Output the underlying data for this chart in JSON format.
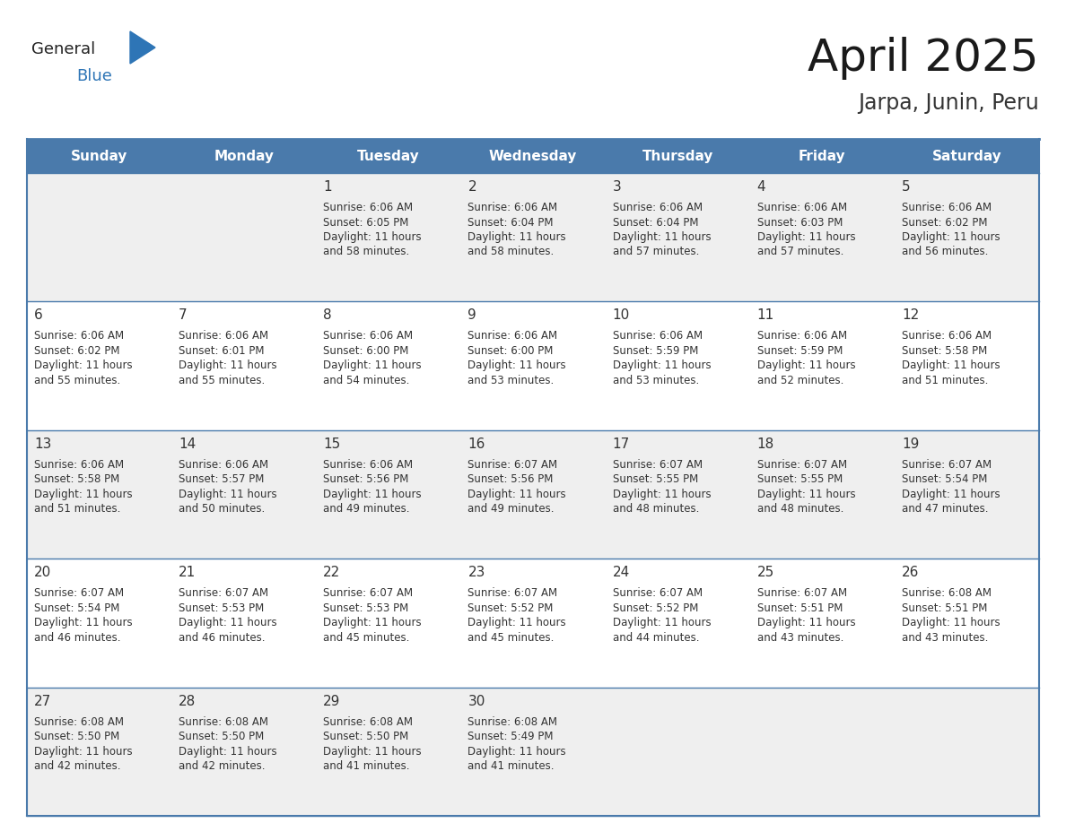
{
  "title": "April 2025",
  "subtitle": "Jarpa, Junin, Peru",
  "days_of_week": [
    "Sunday",
    "Monday",
    "Tuesday",
    "Wednesday",
    "Thursday",
    "Friday",
    "Saturday"
  ],
  "header_bg": "#4a7aab",
  "header_text_color": "#ffffff",
  "cell_bg_light": "#efefef",
  "cell_bg_white": "#ffffff",
  "text_color": "#333333",
  "border_color": "#4a7aab",
  "logo_text_color": "#222222",
  "logo_blue_color": "#2e75b6",
  "title_color": "#1a1a1a",
  "calendar_data": [
    [
      null,
      null,
      {
        "day": 1,
        "sunrise": "6:06 AM",
        "sunset": "6:05 PM",
        "daylight": "11 hours",
        "daylight2": "and 58 minutes."
      },
      {
        "day": 2,
        "sunrise": "6:06 AM",
        "sunset": "6:04 PM",
        "daylight": "11 hours",
        "daylight2": "and 58 minutes."
      },
      {
        "day": 3,
        "sunrise": "6:06 AM",
        "sunset": "6:04 PM",
        "daylight": "11 hours",
        "daylight2": "and 57 minutes."
      },
      {
        "day": 4,
        "sunrise": "6:06 AM",
        "sunset": "6:03 PM",
        "daylight": "11 hours",
        "daylight2": "and 57 minutes."
      },
      {
        "day": 5,
        "sunrise": "6:06 AM",
        "sunset": "6:02 PM",
        "daylight": "11 hours",
        "daylight2": "and 56 minutes."
      }
    ],
    [
      {
        "day": 6,
        "sunrise": "6:06 AM",
        "sunset": "6:02 PM",
        "daylight": "11 hours",
        "daylight2": "and 55 minutes."
      },
      {
        "day": 7,
        "sunrise": "6:06 AM",
        "sunset": "6:01 PM",
        "daylight": "11 hours",
        "daylight2": "and 55 minutes."
      },
      {
        "day": 8,
        "sunrise": "6:06 AM",
        "sunset": "6:00 PM",
        "daylight": "11 hours",
        "daylight2": "and 54 minutes."
      },
      {
        "day": 9,
        "sunrise": "6:06 AM",
        "sunset": "6:00 PM",
        "daylight": "11 hours",
        "daylight2": "and 53 minutes."
      },
      {
        "day": 10,
        "sunrise": "6:06 AM",
        "sunset": "5:59 PM",
        "daylight": "11 hours",
        "daylight2": "and 53 minutes."
      },
      {
        "day": 11,
        "sunrise": "6:06 AM",
        "sunset": "5:59 PM",
        "daylight": "11 hours",
        "daylight2": "and 52 minutes."
      },
      {
        "day": 12,
        "sunrise": "6:06 AM",
        "sunset": "5:58 PM",
        "daylight": "11 hours",
        "daylight2": "and 51 minutes."
      }
    ],
    [
      {
        "day": 13,
        "sunrise": "6:06 AM",
        "sunset": "5:58 PM",
        "daylight": "11 hours",
        "daylight2": "and 51 minutes."
      },
      {
        "day": 14,
        "sunrise": "6:06 AM",
        "sunset": "5:57 PM",
        "daylight": "11 hours",
        "daylight2": "and 50 minutes."
      },
      {
        "day": 15,
        "sunrise": "6:06 AM",
        "sunset": "5:56 PM",
        "daylight": "11 hours",
        "daylight2": "and 49 minutes."
      },
      {
        "day": 16,
        "sunrise": "6:07 AM",
        "sunset": "5:56 PM",
        "daylight": "11 hours",
        "daylight2": "and 49 minutes."
      },
      {
        "day": 17,
        "sunrise": "6:07 AM",
        "sunset": "5:55 PM",
        "daylight": "11 hours",
        "daylight2": "and 48 minutes."
      },
      {
        "day": 18,
        "sunrise": "6:07 AM",
        "sunset": "5:55 PM",
        "daylight": "11 hours",
        "daylight2": "and 48 minutes."
      },
      {
        "day": 19,
        "sunrise": "6:07 AM",
        "sunset": "5:54 PM",
        "daylight": "11 hours",
        "daylight2": "and 47 minutes."
      }
    ],
    [
      {
        "day": 20,
        "sunrise": "6:07 AM",
        "sunset": "5:54 PM",
        "daylight": "11 hours",
        "daylight2": "and 46 minutes."
      },
      {
        "day": 21,
        "sunrise": "6:07 AM",
        "sunset": "5:53 PM",
        "daylight": "11 hours",
        "daylight2": "and 46 minutes."
      },
      {
        "day": 22,
        "sunrise": "6:07 AM",
        "sunset": "5:53 PM",
        "daylight": "11 hours",
        "daylight2": "and 45 minutes."
      },
      {
        "day": 23,
        "sunrise": "6:07 AM",
        "sunset": "5:52 PM",
        "daylight": "11 hours",
        "daylight2": "and 45 minutes."
      },
      {
        "day": 24,
        "sunrise": "6:07 AM",
        "sunset": "5:52 PM",
        "daylight": "11 hours",
        "daylight2": "and 44 minutes."
      },
      {
        "day": 25,
        "sunrise": "6:07 AM",
        "sunset": "5:51 PM",
        "daylight": "11 hours",
        "daylight2": "and 43 minutes."
      },
      {
        "day": 26,
        "sunrise": "6:08 AM",
        "sunset": "5:51 PM",
        "daylight": "11 hours",
        "daylight2": "and 43 minutes."
      }
    ],
    [
      {
        "day": 27,
        "sunrise": "6:08 AM",
        "sunset": "5:50 PM",
        "daylight": "11 hours",
        "daylight2": "and 42 minutes."
      },
      {
        "day": 28,
        "sunrise": "6:08 AM",
        "sunset": "5:50 PM",
        "daylight": "11 hours",
        "daylight2": "and 42 minutes."
      },
      {
        "day": 29,
        "sunrise": "6:08 AM",
        "sunset": "5:50 PM",
        "daylight": "11 hours",
        "daylight2": "and 41 minutes."
      },
      {
        "day": 30,
        "sunrise": "6:08 AM",
        "sunset": "5:49 PM",
        "daylight": "11 hours",
        "daylight2": "and 41 minutes."
      },
      null,
      null,
      null
    ]
  ]
}
